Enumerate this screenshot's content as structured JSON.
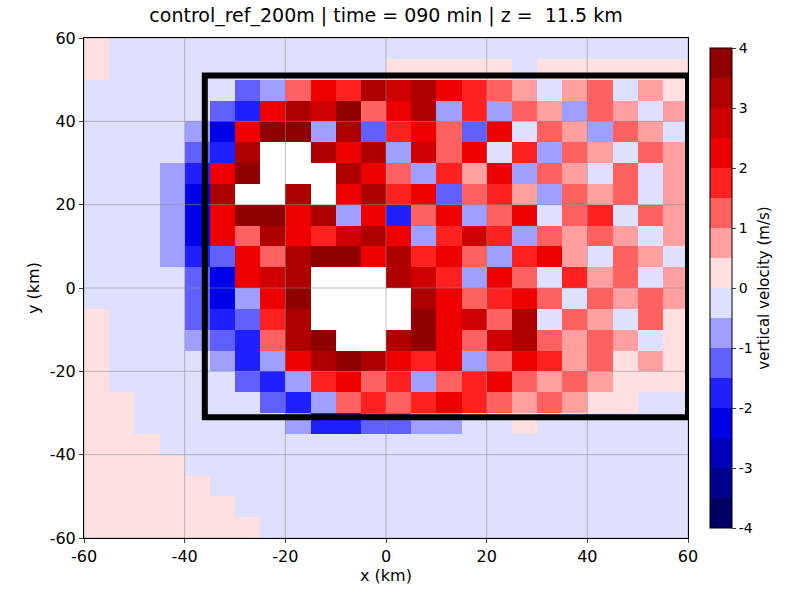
{
  "chart_data": {
    "type": "heatmap",
    "title": "control_ref_200m | time = 090 min | z =  11.5 km",
    "x_label": "x (km)",
    "y_label": "y (km)",
    "xlim": [
      -60,
      60
    ],
    "ylim": [
      -60,
      60
    ],
    "xticks": [
      -60,
      -40,
      -20,
      0,
      20,
      40,
      60
    ],
    "yticks": [
      -60,
      -40,
      -20,
      0,
      20,
      40,
      60
    ],
    "grid": true,
    "x": [
      -57.5,
      -52.5,
      -47.5,
      -42.5,
      -37.5,
      -32.5,
      -27.5,
      -22.5,
      -17.5,
      -12.5,
      -7.5,
      -2.5,
      2.5,
      7.5,
      12.5,
      17.5,
      22.5,
      27.5,
      32.5,
      37.5,
      42.5,
      47.5,
      52.5,
      57.5
    ],
    "y": [
      -57.5,
      -52.5,
      -47.5,
      -42.5,
      -37.5,
      -32.5,
      -27.5,
      -22.5,
      -17.5,
      -12.5,
      -7.5,
      -2.5,
      2.5,
      7.5,
      12.5,
      17.5,
      22.5,
      27.5,
      32.5,
      37.5,
      42.5,
      47.5,
      52.5,
      57.5
    ],
    "cells": [
      [
        0.3,
        0.3,
        0.3,
        0.3,
        0.3,
        0.3,
        0.3,
        -0.3,
        -0.3,
        -0.3,
        -0.3,
        -0.3,
        -0.3,
        -0.3,
        -0.3,
        -0.3,
        -0.3,
        -0.3,
        -0.3,
        -0.3,
        -0.3,
        -0.3,
        -0.3,
        -0.3
      ],
      [
        0.3,
        0.3,
        0.3,
        0.3,
        0.3,
        0.3,
        -0.3,
        -0.3,
        -0.3,
        -0.3,
        -0.3,
        -0.3,
        -0.3,
        -0.3,
        -0.3,
        -0.3,
        -0.3,
        -0.3,
        -0.3,
        -0.3,
        -0.3,
        -0.3,
        -0.3,
        -0.3
      ],
      [
        0.3,
        0.3,
        0.3,
        0.3,
        0.3,
        -0.3,
        -0.3,
        -0.3,
        -0.3,
        -0.3,
        -0.3,
        -0.3,
        -0.3,
        -0.3,
        -0.3,
        -0.3,
        -0.3,
        -0.3,
        -0.3,
        -0.3,
        -0.3,
        -0.3,
        -0.3,
        -0.3
      ],
      [
        0.3,
        0.3,
        0.3,
        0.3,
        -0.3,
        -0.3,
        -0.3,
        -0.3,
        -0.3,
        -0.3,
        -0.3,
        -0.3,
        -0.3,
        -0.3,
        -0.3,
        -0.3,
        -0.3,
        -0.3,
        -0.3,
        -0.3,
        -0.3,
        -0.3,
        -0.3,
        -0.3
      ],
      [
        0.3,
        0.3,
        0.3,
        -0.3,
        -0.3,
        -0.3,
        -0.3,
        -0.3,
        -0.3,
        -0.3,
        -0.3,
        -0.5,
        -0.5,
        -0.5,
        -0.5,
        -0.3,
        -0.3,
        -0.3,
        -0.3,
        -0.3,
        -0.3,
        -0.3,
        -0.3,
        -0.3
      ],
      [
        0.3,
        0.3,
        -0.3,
        -0.3,
        -0.3,
        -0.3,
        -0.3,
        -0.5,
        -1,
        -2,
        -2,
        -1.5,
        -1.5,
        -1,
        -1,
        -0.5,
        -0.5,
        0.3,
        -0.3,
        -0.3,
        -0.3,
        -0.3,
        -0.3,
        -0.3
      ],
      [
        0.3,
        0.3,
        -0.3,
        -0.3,
        -0.3,
        -0.3,
        -0.5,
        -1.5,
        -2,
        -1,
        1,
        1.5,
        1,
        1.5,
        2,
        1.5,
        1,
        0.5,
        1,
        0.5,
        0.3,
        0.3,
        -0.3,
        -0.3
      ],
      [
        0.3,
        -0.3,
        -0.3,
        -0.3,
        -0.3,
        -0.5,
        -1.5,
        -2,
        -1,
        1.5,
        2,
        1,
        1.5,
        -1,
        1,
        1.5,
        2,
        1,
        0.5,
        1,
        0.5,
        0.3,
        0.3,
        0.3
      ],
      [
        0.3,
        -0.3,
        -0.3,
        -0.3,
        -0.5,
        -1,
        -2,
        -1,
        2,
        3,
        3.5,
        3,
        2,
        1.5,
        2,
        -1,
        1,
        2,
        1.5,
        0.5,
        1,
        0.3,
        0.5,
        0.3
      ],
      [
        0.3,
        -0.3,
        -0.3,
        -0.3,
        -0.8,
        -1.5,
        -2,
        1,
        3,
        3.5,
        null,
        null,
        3,
        4,
        2,
        1,
        2.5,
        3,
        1,
        0.5,
        1,
        0.5,
        -0.5,
        0.3
      ],
      [
        0.3,
        -0.3,
        -0.3,
        -0.5,
        -1.5,
        -2,
        -1.5,
        1.5,
        3,
        null,
        null,
        null,
        null,
        3.5,
        2,
        2.5,
        1,
        3,
        -0.5,
        1,
        0.5,
        -0.5,
        1,
        0.3
      ],
      [
        -0.3,
        -0.3,
        -0.3,
        -0.5,
        -1.5,
        -2.5,
        -1,
        2,
        3.5,
        null,
        null,
        null,
        null,
        3,
        2,
        1,
        1.5,
        2,
        1,
        -0.5,
        1,
        0.5,
        1,
        0.5
      ],
      [
        -0.3,
        -0.3,
        -0.3,
        -0.5,
        -1.5,
        -2.5,
        2,
        2.5,
        3,
        null,
        null,
        null,
        3,
        2.5,
        1.5,
        -1,
        2,
        1,
        -0.5,
        1.5,
        0.5,
        1,
        -0.5,
        0.5
      ],
      [
        -0.3,
        -0.3,
        -0.3,
        -0.8,
        -2,
        -1.5,
        2,
        1,
        3,
        3.5,
        4,
        2,
        3,
        1.5,
        2,
        1,
        -1,
        1.5,
        2,
        0.5,
        -0.5,
        1,
        0.5,
        -0.5
      ],
      [
        -0.3,
        -0.3,
        -0.3,
        -1,
        -2.5,
        2,
        1,
        3,
        2,
        1.5,
        2.5,
        3,
        2,
        -1,
        1.5,
        2.5,
        1.5,
        -1,
        1,
        0.5,
        1,
        0.5,
        -0.5,
        0.5
      ],
      [
        -0.3,
        -0.3,
        -0.3,
        -1,
        -2.5,
        2,
        3.5,
        4,
        2,
        3,
        -1,
        2,
        -2,
        1,
        2,
        -1,
        1,
        2,
        -0.5,
        1,
        1.5,
        -0.5,
        1,
        0.5
      ],
      [
        -0.3,
        -0.3,
        -0.3,
        -1,
        -2.5,
        3,
        null,
        null,
        3,
        null,
        2,
        3,
        1.5,
        2,
        -1.5,
        1,
        1.5,
        0.5,
        -1,
        1,
        0.5,
        1,
        -0.5,
        0.5
      ],
      [
        -0.3,
        -0.3,
        -0.3,
        -0.8,
        -2,
        2,
        4,
        null,
        null,
        null,
        3,
        2,
        1,
        -1,
        1.5,
        0.5,
        2,
        -1,
        1,
        0.5,
        -0.5,
        1,
        -0.5,
        0.5
      ],
      [
        -0.3,
        -0.3,
        -0.3,
        -0.5,
        -1.5,
        -2,
        3,
        null,
        null,
        3,
        2,
        3,
        -1,
        2.5,
        1,
        2,
        -0.5,
        1.5,
        -1,
        1,
        0.5,
        -0.5,
        1,
        0.5
      ],
      [
        -0.3,
        -0.3,
        -0.3,
        -0.5,
        -0.8,
        -2.5,
        2,
        3.5,
        4,
        -1,
        3,
        -1.5,
        1.5,
        2,
        1,
        -1.5,
        2,
        -0.5,
        1,
        0.5,
        -1,
        1,
        0.5,
        -0.5
      ],
      [
        -0.3,
        -0.3,
        -0.3,
        -0.3,
        -0.5,
        -1.5,
        -2,
        2,
        3,
        2.5,
        3.5,
        1,
        2,
        3,
        -1,
        1.5,
        -1,
        1,
        0.5,
        -1,
        1,
        0.5,
        -0.5,
        0.5
      ],
      [
        -0.3,
        -0.3,
        -0.3,
        -0.3,
        -0.3,
        -0.5,
        -1.5,
        -1,
        1,
        2,
        1.5,
        3,
        2.5,
        3,
        2,
        1.5,
        1,
        0.5,
        -0.5,
        0.5,
        1,
        -0.5,
        0.5,
        0.3
      ],
      [
        0.3,
        -0.3,
        -0.3,
        -0.3,
        -0.3,
        -0.3,
        -0.5,
        -0.5,
        -0.5,
        -0.5,
        -0.5,
        -0.5,
        0.3,
        0.3,
        0.3,
        0.3,
        0.3,
        -0.3,
        0.3,
        0.3,
        0.3,
        0.3,
        0.3,
        0.3
      ],
      [
        0.3,
        -0.3,
        -0.3,
        -0.3,
        -0.3,
        -0.3,
        -0.3,
        -0.3,
        -0.3,
        -0.3,
        -0.3,
        -0.3,
        -0.3,
        -0.3,
        -0.3,
        -0.3,
        -0.3,
        -0.3,
        -0.3,
        -0.3,
        -0.3,
        -0.3,
        -0.3,
        -0.3
      ]
    ],
    "colorbar_label": "vertical velocity (m/s)",
    "colorbar_range": [
      -4,
      4
    ],
    "colorbar_ticks": [
      -4,
      -3,
      -2,
      -1,
      0,
      1,
      2,
      3,
      4
    ],
    "color_levels": [
      -4,
      -3.5,
      -3,
      -2.5,
      -2,
      -1.5,
      -1,
      -0.5,
      0,
      0.5,
      1,
      1.5,
      2,
      2.5,
      3,
      3.5,
      4
    ],
    "rectangle": {
      "x0": -36,
      "x1": 60,
      "y0": -31,
      "y1": 51
    }
  }
}
